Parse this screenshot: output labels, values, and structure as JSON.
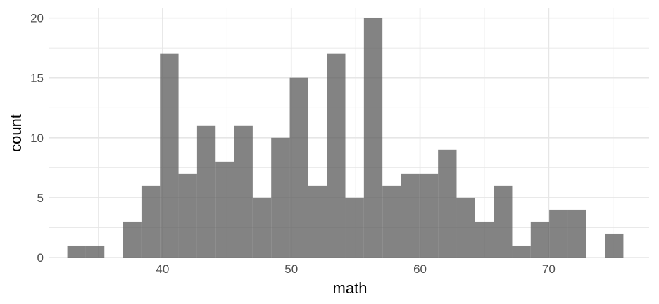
{
  "chart_data": {
    "type": "bar",
    "subtype": "histogram",
    "xlabel": "math",
    "ylabel": "count",
    "xlim": [
      31.2,
      77.8
    ],
    "ylim": [
      0,
      20.8
    ],
    "x_ticks": [
      40,
      50,
      60,
      70
    ],
    "y_ticks": [
      0,
      5,
      10,
      15,
      20
    ],
    "bin_width": 1.44,
    "bins": [
      {
        "start": 32.6,
        "end": 34.04,
        "count": 1
      },
      {
        "start": 34.04,
        "end": 35.48,
        "count": 1
      },
      {
        "start": 35.48,
        "end": 36.92,
        "count": 0
      },
      {
        "start": 36.92,
        "end": 38.36,
        "count": 3
      },
      {
        "start": 38.36,
        "end": 39.8,
        "count": 6
      },
      {
        "start": 39.8,
        "end": 41.24,
        "count": 17
      },
      {
        "start": 41.24,
        "end": 42.68,
        "count": 7
      },
      {
        "start": 42.68,
        "end": 44.12,
        "count": 11
      },
      {
        "start": 44.12,
        "end": 45.56,
        "count": 8
      },
      {
        "start": 45.56,
        "end": 47.0,
        "count": 11
      },
      {
        "start": 47.0,
        "end": 48.44,
        "count": 5
      },
      {
        "start": 48.44,
        "end": 49.88,
        "count": 10
      },
      {
        "start": 49.88,
        "end": 51.32,
        "count": 15
      },
      {
        "start": 51.32,
        "end": 52.76,
        "count": 6
      },
      {
        "start": 52.76,
        "end": 54.2,
        "count": 17
      },
      {
        "start": 54.2,
        "end": 55.64,
        "count": 5
      },
      {
        "start": 55.64,
        "end": 57.08,
        "count": 20
      },
      {
        "start": 57.08,
        "end": 58.52,
        "count": 6
      },
      {
        "start": 58.52,
        "end": 59.96,
        "count": 7
      },
      {
        "start": 59.96,
        "end": 61.4,
        "count": 7
      },
      {
        "start": 61.4,
        "end": 62.84,
        "count": 9
      },
      {
        "start": 62.84,
        "end": 64.28,
        "count": 5
      },
      {
        "start": 64.28,
        "end": 65.72,
        "count": 3
      },
      {
        "start": 65.72,
        "end": 67.16,
        "count": 6
      },
      {
        "start": 67.16,
        "end": 68.6,
        "count": 1
      },
      {
        "start": 68.6,
        "end": 70.04,
        "count": 3
      },
      {
        "start": 70.04,
        "end": 71.48,
        "count": 4
      },
      {
        "start": 71.48,
        "end": 72.92,
        "count": 4
      },
      {
        "start": 72.92,
        "end": 74.36,
        "count": 0
      },
      {
        "start": 74.36,
        "end": 75.8,
        "count": 2
      }
    ],
    "bar_color": "#595959",
    "bar_opacity": 0.75,
    "grid": true,
    "gridline_color": "#e6e6e6",
    "legend": "none"
  }
}
